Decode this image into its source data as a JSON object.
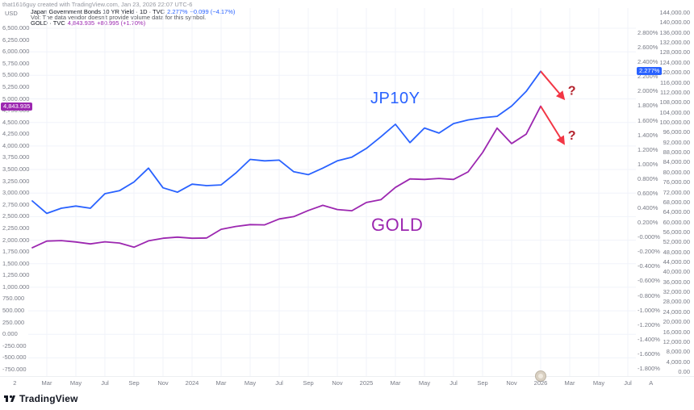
{
  "meta": {
    "watermark": "that1616guy created with TradingView.com, Jan 23, 2026 22:07 UTC-6"
  },
  "header": {
    "axis_currency": "USD",
    "symbol1": {
      "title": "Japan Government Bonds 10 YR Yield · 1D · TVC",
      "last": "2.277%",
      "change": "−0.099 (−4.17%)"
    },
    "vol_note": "Vol: The data vendor doesn't provide volume data for this symbol.",
    "symbol2": {
      "title": "GOLD · TVC",
      "last": "4,843.935",
      "change": "+80.995 (+1.70%)"
    }
  },
  "colors": {
    "jp10y": "#2962ff",
    "gold": "#9c27b0",
    "projection": "#f23645",
    "question": "#b3222d",
    "grid": "#f0f3fa",
    "axis_text": "#787b86",
    "brand": "#131722"
  },
  "price_labels": {
    "gold": "4,843.935",
    "jp10y": "2.277%"
  },
  "annotations": {
    "jp10y_label": "JP10Y",
    "gold_label": "GOLD",
    "question_mark": "?"
  },
  "logo": {
    "text": "TradingView"
  },
  "chart_data": {
    "type": "line",
    "title": "Japan Government Bonds 10 YR Yield vs GOLD",
    "grid": true,
    "legend_position": "top-left",
    "x_monthly": [
      "2023-02",
      "2023-03",
      "2023-04",
      "2023-05",
      "2023-06",
      "2023-07",
      "2023-08",
      "2023-09",
      "2023-10",
      "2023-11",
      "2023-12",
      "2024-01",
      "2024-02",
      "2024-03",
      "2024-04",
      "2024-05",
      "2024-06",
      "2024-07",
      "2024-08",
      "2024-09",
      "2024-10",
      "2024-11",
      "2024-12",
      "2025-01",
      "2025-02",
      "2025-03",
      "2025-04",
      "2025-05",
      "2025-06",
      "2025-07",
      "2025-08",
      "2025-09",
      "2025-10",
      "2025-11",
      "2025-12",
      "2026-01"
    ],
    "series": [
      {
        "name": "JP10Y",
        "axis": "percent",
        "color": "#2962ff",
        "values": [
          0.5,
          0.33,
          0.4,
          0.43,
          0.4,
          0.6,
          0.64,
          0.76,
          0.95,
          0.68,
          0.62,
          0.73,
          0.71,
          0.72,
          0.88,
          1.07,
          1.05,
          1.06,
          0.9,
          0.86,
          0.95,
          1.05,
          1.1,
          1.22,
          1.38,
          1.55,
          1.3,
          1.5,
          1.43,
          1.56,
          1.61,
          1.64,
          1.66,
          1.8,
          2.0,
          2.277
        ]
      },
      {
        "name": "GOLD",
        "axis": "usd",
        "color": "#9c27b0",
        "values": [
          1840,
          1980,
          1990,
          1962,
          1920,
          1965,
          1940,
          1850,
          1985,
          2040,
          2065,
          2040,
          2045,
          2230,
          2290,
          2330,
          2325,
          2450,
          2500,
          2630,
          2740,
          2650,
          2625,
          2800,
          2860,
          3120,
          3300,
          3290,
          3310,
          3290,
          3450,
          3860,
          4380,
          4050,
          4250,
          4843.935
        ]
      }
    ],
    "axes": {
      "left_usd": {
        "title": "USD",
        "min": -750,
        "max": 6500,
        "tick_step": 250,
        "label_format": "#,##0.000"
      },
      "right_percent": {
        "min": -1.8,
        "max": 2.8,
        "tick_step": 0.2,
        "label_format": "0.000%"
      },
      "right_outer": {
        "min": 0,
        "max": 144000,
        "tick_step": 4000,
        "label_format": "#,##0.00"
      }
    },
    "x_ticks": [
      {
        "label": "2",
        "m": -1.2,
        "year": false
      },
      {
        "label": "Mar",
        "m": 1
      },
      {
        "label": "May",
        "m": 3
      },
      {
        "label": "Jul",
        "m": 5
      },
      {
        "label": "Sep",
        "m": 7
      },
      {
        "label": "Nov",
        "m": 9
      },
      {
        "label": "2024",
        "m": 11,
        "year": true
      },
      {
        "label": "Mar",
        "m": 13
      },
      {
        "label": "May",
        "m": 15
      },
      {
        "label": "Jul",
        "m": 17
      },
      {
        "label": "Sep",
        "m": 19
      },
      {
        "label": "Nov",
        "m": 21
      },
      {
        "label": "2025",
        "m": 23,
        "year": true
      },
      {
        "label": "Mar",
        "m": 25
      },
      {
        "label": "May",
        "m": 27
      },
      {
        "label": "Jul",
        "m": 29
      },
      {
        "label": "Sep",
        "m": 31
      },
      {
        "label": "Nov",
        "m": 33
      },
      {
        "label": "2026",
        "m": 35,
        "year": true
      },
      {
        "label": "Mar",
        "m": 37
      },
      {
        "label": "May",
        "m": 39
      },
      {
        "label": "Jul",
        "m": 41
      },
      {
        "label": "A",
        "m": 42.6
      }
    ],
    "projections": [
      {
        "series": "JP10Y",
        "from": {
          "m": 35,
          "v": 2.277
        },
        "to": {
          "m": 36.6,
          "v": 1.9
        },
        "label": "?"
      },
      {
        "series": "GOLD",
        "from": {
          "m": 35,
          "v": 4843.935
        },
        "to": {
          "m": 36.6,
          "v": 4050
        },
        "label": "?"
      }
    ]
  }
}
